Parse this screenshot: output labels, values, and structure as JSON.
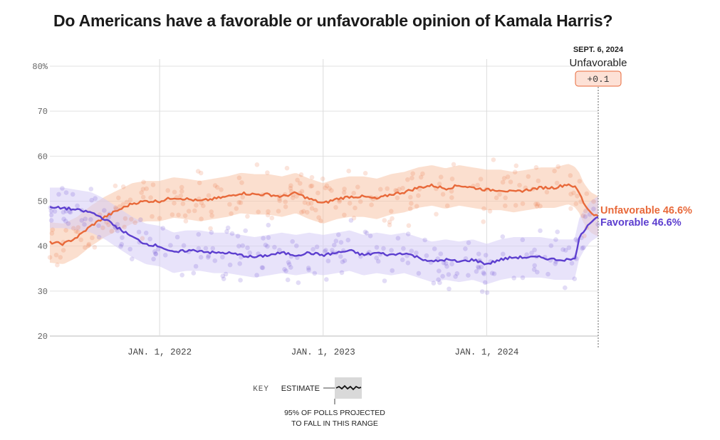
{
  "chart_data": {
    "type": "line",
    "title": "Do Americans have a favorable or unfavorable opinion of Kamala Harris?",
    "xlabel": "",
    "ylabel": "",
    "y_unit": "%",
    "ylim": [
      20,
      80
    ],
    "y_ticks": [
      "80%",
      "70",
      "60",
      "50",
      "40",
      "30",
      "20"
    ],
    "xlim": [
      "2021-05-01",
      "2024-09-06"
    ],
    "x_ticks": [
      {
        "date": "2022-01-01",
        "label": "JAN. 1, 2022"
      },
      {
        "date": "2023-01-01",
        "label": "JAN. 1, 2023"
      },
      {
        "date": "2024-01-01",
        "label": "JAN. 1, 2024"
      }
    ],
    "grid": true,
    "series": [
      {
        "name": "Unfavorable",
        "color": "#e8693a",
        "band_color": "#f7c4a8",
        "end_label": "Unfavorable 46.6%",
        "points": [
          [
            "2021-05-01",
            40.8
          ],
          [
            "2021-06-01",
            40.5
          ],
          [
            "2021-07-01",
            42.0
          ],
          [
            "2021-08-01",
            44.5
          ],
          [
            "2021-09-01",
            46.5
          ],
          [
            "2021-10-01",
            48.0
          ],
          [
            "2021-11-01",
            49.5
          ],
          [
            "2021-12-01",
            50.0
          ],
          [
            "2022-01-01",
            50.0
          ],
          [
            "2022-02-01",
            50.8
          ],
          [
            "2022-03-01",
            50.5
          ],
          [
            "2022-04-01",
            50.0
          ],
          [
            "2022-05-01",
            50.5
          ],
          [
            "2022-06-01",
            51.0
          ],
          [
            "2022-07-01",
            51.8
          ],
          [
            "2022-08-01",
            51.5
          ],
          [
            "2022-09-01",
            51.5
          ],
          [
            "2022-10-01",
            51.0
          ],
          [
            "2022-11-01",
            51.8
          ],
          [
            "2022-12-01",
            50.5
          ],
          [
            "2023-01-01",
            49.5
          ],
          [
            "2023-02-01",
            50.5
          ],
          [
            "2023-03-01",
            51.0
          ],
          [
            "2023-04-01",
            51.0
          ],
          [
            "2023-05-01",
            50.5
          ],
          [
            "2023-06-01",
            51.5
          ],
          [
            "2023-07-01",
            52.0
          ],
          [
            "2023-08-01",
            53.0
          ],
          [
            "2023-09-01",
            53.5
          ],
          [
            "2023-10-01",
            52.8
          ],
          [
            "2023-11-01",
            53.5
          ],
          [
            "2023-12-01",
            53.0
          ],
          [
            "2024-01-01",
            52.5
          ],
          [
            "2024-02-01",
            52.5
          ],
          [
            "2024-03-01",
            52.0
          ],
          [
            "2024-04-01",
            52.5
          ],
          [
            "2024-05-01",
            53.0
          ],
          [
            "2024-06-01",
            53.0
          ],
          [
            "2024-07-01",
            53.8
          ],
          [
            "2024-07-15",
            53.2
          ],
          [
            "2024-07-25",
            52.0
          ],
          [
            "2024-08-05",
            49.5
          ],
          [
            "2024-08-20",
            47.5
          ],
          [
            "2024-09-06",
            46.6
          ]
        ]
      },
      {
        "name": "Favorable",
        "color": "#5d3fcf",
        "band_color": "#d6ccf5",
        "end_label": "Favorable 46.6%",
        "points": [
          [
            "2021-05-01",
            48.5
          ],
          [
            "2021-06-01",
            48.5
          ],
          [
            "2021-07-01",
            48.0
          ],
          [
            "2021-08-01",
            47.5
          ],
          [
            "2021-09-01",
            46.0
          ],
          [
            "2021-10-01",
            44.0
          ],
          [
            "2021-11-01",
            42.0
          ],
          [
            "2021-12-01",
            40.5
          ],
          [
            "2022-01-01",
            40.0
          ],
          [
            "2022-02-01",
            38.5
          ],
          [
            "2022-03-01",
            39.0
          ],
          [
            "2022-04-01",
            39.0
          ],
          [
            "2022-05-01",
            38.5
          ],
          [
            "2022-06-01",
            38.5
          ],
          [
            "2022-07-01",
            38.0
          ],
          [
            "2022-08-01",
            37.5
          ],
          [
            "2022-09-01",
            38.0
          ],
          [
            "2022-10-01",
            38.5
          ],
          [
            "2022-11-01",
            38.0
          ],
          [
            "2022-12-01",
            38.5
          ],
          [
            "2023-01-01",
            38.0
          ],
          [
            "2023-02-01",
            38.5
          ],
          [
            "2023-03-01",
            39.0
          ],
          [
            "2023-04-01",
            38.0
          ],
          [
            "2023-05-01",
            38.5
          ],
          [
            "2023-06-01",
            38.0
          ],
          [
            "2023-07-01",
            38.5
          ],
          [
            "2023-08-01",
            37.5
          ],
          [
            "2023-09-01",
            36.5
          ],
          [
            "2023-10-01",
            37.0
          ],
          [
            "2023-11-01",
            36.5
          ],
          [
            "2023-12-01",
            37.0
          ],
          [
            "2024-01-01",
            36.0
          ],
          [
            "2024-02-01",
            37.0
          ],
          [
            "2024-03-01",
            37.5
          ],
          [
            "2024-04-01",
            37.5
          ],
          [
            "2024-05-01",
            37.5
          ],
          [
            "2024-06-01",
            37.0
          ],
          [
            "2024-07-01",
            37.0
          ],
          [
            "2024-07-15",
            37.0
          ],
          [
            "2024-07-25",
            41.5
          ],
          [
            "2024-08-05",
            43.5
          ],
          [
            "2024-08-20",
            45.5
          ],
          [
            "2024-09-06",
            46.6
          ]
        ]
      }
    ],
    "marker": {
      "date": "2024-09-06",
      "date_label": "SEPT. 6, 2024",
      "series_label": "Unfavorable",
      "difference": "+0.1"
    },
    "key": {
      "heading": "KEY",
      "estimate_label": "ESTIMATE",
      "range_note_line1": "95% OF POLLS PROJECTED",
      "range_note_line2": "TO FALL IN THIS RANGE"
    }
  }
}
